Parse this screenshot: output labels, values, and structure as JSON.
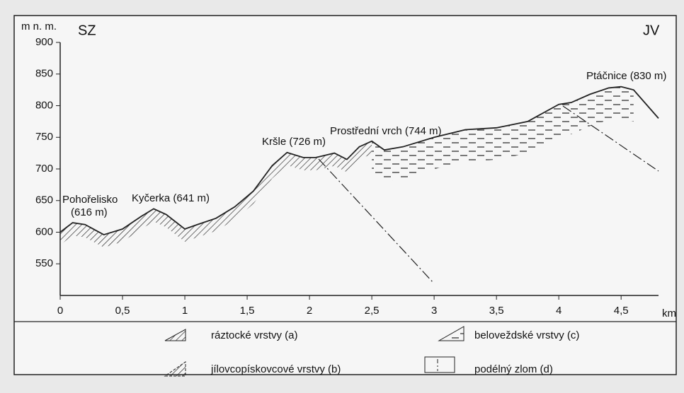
{
  "chart_data": {
    "type": "line",
    "y_label": "m n. m.",
    "x_label": "km",
    "left_label": "SZ",
    "right_label": "JV",
    "x": [
      0,
      0.1,
      0.2,
      0.35,
      0.5,
      0.65,
      0.75,
      0.85,
      1.0,
      1.1,
      1.25,
      1.4,
      1.55,
      1.7,
      1.82,
      1.95,
      2.05,
      2.2,
      2.3,
      2.4,
      2.5,
      2.6,
      2.75,
      3.0,
      3.25,
      3.5,
      3.75,
      4.0,
      4.1,
      4.25,
      4.4,
      4.5,
      4.6,
      4.8
    ],
    "values": [
      600,
      615,
      612,
      596,
      605,
      625,
      637,
      628,
      605,
      612,
      622,
      640,
      665,
      705,
      726,
      718,
      718,
      725,
      715,
      735,
      744,
      730,
      735,
      750,
      762,
      765,
      775,
      802,
      805,
      818,
      828,
      830,
      825,
      780
    ],
    "color": "#222222",
    "xlim": [
      0,
      4.8
    ],
    "xticks": [
      0,
      {
        "value": 0.5,
        "label": "0,5"
      },
      1,
      {
        "value": 1.5,
        "label": "1,5"
      },
      2,
      {
        "value": 2.5,
        "label": "2,5"
      },
      3,
      {
        "value": 3.5,
        "label": "3,5"
      },
      4,
      {
        "value": 4.5,
        "label": "4,5"
      }
    ],
    "ylim": [
      500,
      900
    ],
    "yticks": [
      550,
      600,
      650,
      700,
      750,
      800,
      850,
      900
    ],
    "annotations": [
      "Pohořelisko",
      "(616 m)",
      "Kyčerka (641 m)",
      "Kršle (726 m)",
      "Prostřední vrch (744 m)",
      "Ptáčnice (830 m)"
    ],
    "legend_items": [
      "ráztocké vrstvy (a)",
      "jílovcopískovcové vrstvy (b)",
      "beloveždské vrstvy (c)",
      "podélný zlom (d)"
    ]
  }
}
